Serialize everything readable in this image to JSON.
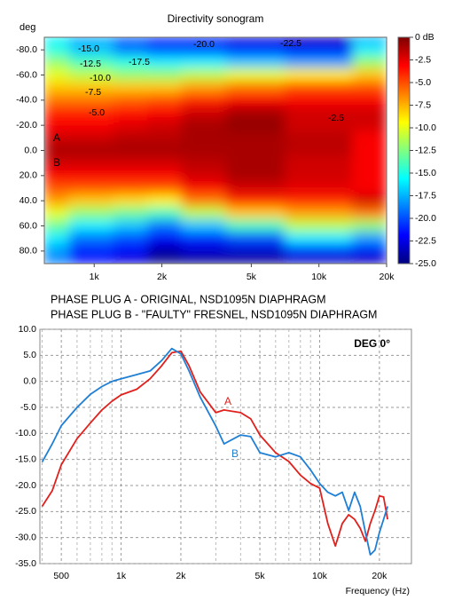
{
  "chart_data": [
    {
      "type": "heatmap",
      "title": "Directivity sonogram",
      "ylabel": "deg",
      "x": [
        600,
        1000,
        1500,
        2000,
        3000,
        5000,
        10000,
        20000
      ],
      "y": [
        -90,
        -80,
        -70,
        -60,
        -50,
        -40,
        -30,
        -20,
        -10,
        0,
        10,
        20,
        30,
        40,
        50,
        60,
        70,
        80,
        90
      ],
      "z": [
        [
          -16,
          -18,
          -20,
          -22,
          -22,
          -23,
          -24,
          -18
        ],
        [
          -15,
          -17,
          -19,
          -20,
          -20,
          -21,
          -22,
          -16
        ],
        [
          -12,
          -14,
          -15,
          -16,
          -16,
          -17,
          -18,
          -12
        ],
        [
          -10,
          -11,
          -12,
          -12,
          -11,
          -10,
          -9,
          -8
        ],
        [
          -8,
          -8,
          -8,
          -8,
          -7,
          -6,
          -5,
          -5
        ],
        [
          -6,
          -6,
          -5.5,
          -5,
          -4,
          -3,
          -3,
          -3
        ],
        [
          -4,
          -4,
          -3.5,
          -3,
          -2,
          -1,
          -2,
          -2
        ],
        [
          -3,
          -3,
          -2.5,
          -2,
          -1,
          -0.5,
          -2,
          -2
        ],
        [
          -2,
          -2,
          -1.5,
          -1.5,
          -1,
          -1,
          -1.5,
          -3
        ],
        [
          -1,
          -1,
          -1,
          -1,
          -1,
          -1,
          -1.5,
          -3
        ],
        [
          -2,
          -2,
          -2,
          -2,
          -1.5,
          -1,
          -2,
          -3
        ],
        [
          -3,
          -3,
          -3,
          -3,
          -2,
          -1,
          -2,
          -3
        ],
        [
          -5,
          -5,
          -5,
          -5,
          -3,
          -2,
          -2.5,
          -3
        ],
        [
          -7,
          -8,
          -8.5,
          -9,
          -6,
          -4,
          -4,
          -2
        ],
        [
          -10,
          -12,
          -13,
          -14,
          -11,
          -8,
          -7,
          -6
        ],
        [
          -13,
          -16,
          -17,
          -19,
          -17,
          -14,
          -11,
          -12
        ],
        [
          -16,
          -19,
          -20,
          -22,
          -21,
          -20,
          -16,
          -18
        ],
        [
          -18,
          -21,
          -22,
          -24,
          -23,
          -23,
          -21,
          -22
        ],
        [
          -19,
          -22,
          -23,
          -25,
          -25,
          -25,
          -24,
          -24
        ]
      ],
      "xlim": [
        600,
        20000
      ],
      "xscale": "log",
      "xticks": [
        {
          "value": 1000,
          "label": "1k"
        },
        {
          "value": 2000,
          "label": "2k"
        },
        {
          "value": 5000,
          "label": "5k"
        },
        {
          "value": 10000,
          "label": "10k"
        },
        {
          "value": 20000,
          "label": "20k"
        }
      ],
      "ylim": [
        -90,
        90
      ],
      "yticks": [
        {
          "value": -80,
          "label": "-80.0"
        },
        {
          "value": -60,
          "label": "-60.0"
        },
        {
          "value": -40,
          "label": "-40.0"
        },
        {
          "value": -20,
          "label": "-20.0"
        },
        {
          "value": 0,
          "label": "0.0"
        },
        {
          "value": 20,
          "label": "20.0"
        },
        {
          "value": 40,
          "label": "40.0"
        },
        {
          "value": 60,
          "label": "60.0"
        },
        {
          "value": 80,
          "label": "80.0"
        }
      ],
      "clim": [
        -25,
        0
      ],
      "cticks": [
        {
          "value": 0,
          "label": "0 dB"
        },
        -2.5,
        {
          "value": -5,
          "label": "-5.0"
        },
        -7.5,
        {
          "value": -10,
          "label": "-10.0"
        },
        -12.5,
        {
          "value": -15,
          "label": "-15.0"
        },
        -17.5,
        {
          "value": -20,
          "label": "-20.0"
        },
        -22.5,
        {
          "value": -25,
          "label": "-25.0"
        }
      ],
      "colormap": [
        "#7f0000",
        "#ff0000",
        "#ff8000",
        "#ffff00",
        "#80ff80",
        "#00ffff",
        "#0080ff",
        "#0000ff",
        "#00007f"
      ],
      "annotations": [
        "-15.0",
        "-12.5",
        "-17.5",
        "-10.0",
        "-7.5",
        "-5.0",
        "-20.0",
        "-22.5",
        "-2.5",
        "A",
        "B"
      ]
    },
    {
      "type": "line",
      "title": "PHASE PLUG A - ORIGINAL, NSD1095N DIAPHRAGM",
      "subtitle": "PHASE PLUG B - \"FAULTY\" FRESNEL, NSD1095N DIAPHRAGM",
      "annotation": "DEG 0°",
      "xlabel": "Frequency (Hz)",
      "x": [
        400,
        450,
        500,
        600,
        700,
        800,
        900,
        1000,
        1200,
        1400,
        1600,
        1800,
        2000,
        2200,
        2500,
        3000,
        3300,
        4000,
        4500,
        5000,
        6000,
        7000,
        8000,
        9000,
        10000,
        11000,
        12000,
        13000,
        14000,
        15000,
        16000,
        17000,
        18000,
        19000,
        20000,
        21000,
        22000
      ],
      "series": [
        {
          "name": "A",
          "color": "#e0201c",
          "values": [
            -24,
            -21,
            -16,
            -11,
            -8,
            -5.5,
            -3.8,
            -2.6,
            -1.5,
            0.5,
            3,
            5.5,
            5.8,
            3,
            -2,
            -6,
            -5.5,
            -6,
            -7.2,
            -10.3,
            -13.7,
            -15.4,
            -18,
            -19.6,
            -20.5,
            -27.3,
            -31.6,
            -27.3,
            -25.6,
            -26.5,
            -28.2,
            -30.7,
            -27.3,
            -24.8,
            -22,
            -22.2,
            -26.5
          ]
        },
        {
          "name": "B",
          "color": "#1f7fd4",
          "values": [
            -15.5,
            -12,
            -8.5,
            -5,
            -2.5,
            -1,
            0,
            0.5,
            1.3,
            2,
            4,
            6.3,
            5.3,
            2,
            -3,
            -8.6,
            -12,
            -10.3,
            -10.6,
            -13.7,
            -14.5,
            -13.7,
            -14.5,
            -17,
            -19.6,
            -21.3,
            -22,
            -21.3,
            -24.8,
            -21.3,
            -24,
            -29,
            -33.3,
            -32.4,
            -29,
            -26.5,
            -24
          ]
        }
      ],
      "xlim": [
        390,
        29000
      ],
      "xscale": "log",
      "xticks": [
        500,
        {
          "value": 1000,
          "label": "1k"
        },
        {
          "value": 2000,
          "label": "2k"
        },
        {
          "value": 5000,
          "label": "5k"
        },
        {
          "value": 10000,
          "label": "10k"
        },
        {
          "value": 20000,
          "label": "20k"
        }
      ],
      "xminorticks": [
        400,
        600,
        700,
        800,
        900,
        3000,
        4000,
        6000,
        7000,
        8000,
        9000
      ],
      "ylim": [
        -35,
        10
      ],
      "yticks": [
        {
          "value": 10,
          "label": "10.0"
        },
        {
          "value": 5,
          "label": "5.0"
        },
        {
          "value": 0,
          "label": "0.0"
        },
        {
          "value": -5,
          "label": "-5.0"
        },
        {
          "value": -10,
          "label": "-10.0"
        },
        {
          "value": -15,
          "label": "-15.0"
        },
        {
          "value": -20,
          "label": "-20.0"
        },
        {
          "value": -25,
          "label": "-25.0"
        },
        {
          "value": -30,
          "label": "-30.0"
        },
        {
          "value": -35,
          "label": "-35.0"
        }
      ],
      "grid": true
    }
  ]
}
